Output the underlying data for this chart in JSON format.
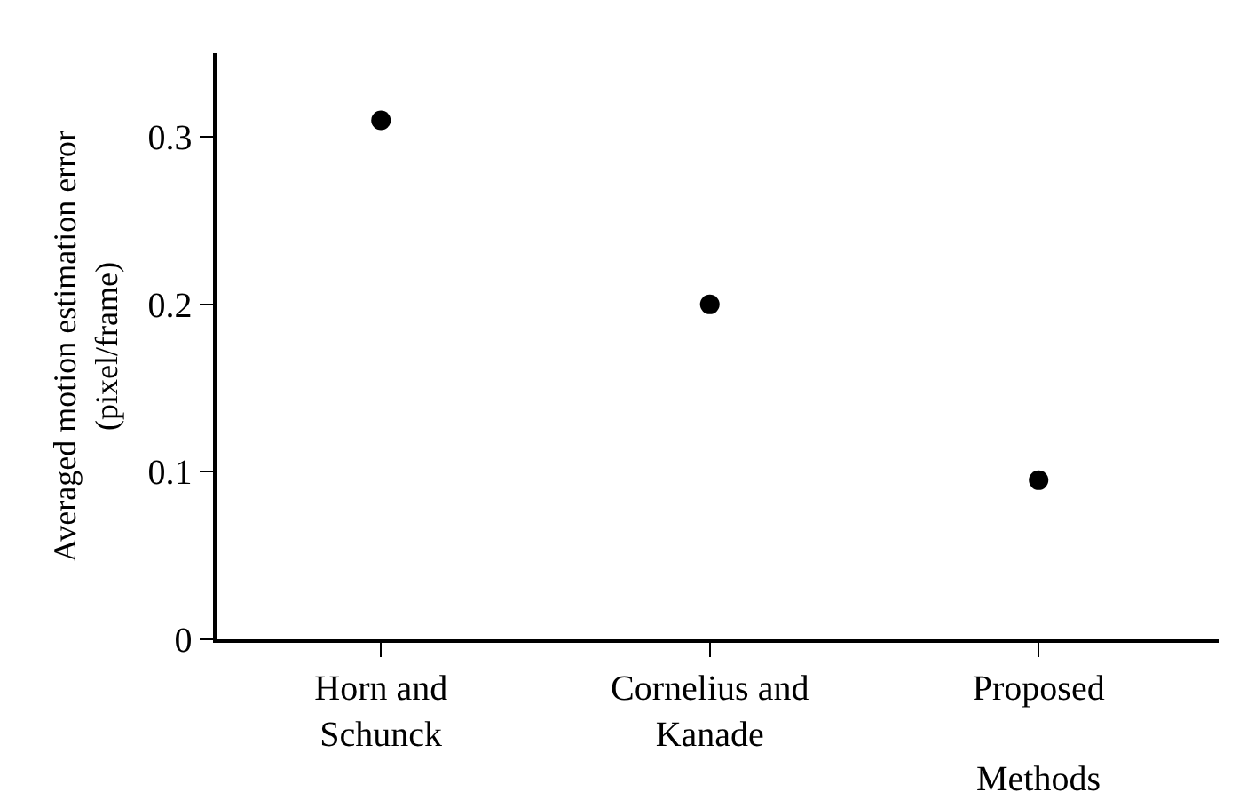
{
  "chart_data": {
    "type": "scatter",
    "xlabel": "Methods",
    "ylabel": "Averaged motion estimation error\n(pixel/frame)",
    "categories": [
      "Horn and\nSchunck",
      "Cornelius and\nKanade",
      "Proposed"
    ],
    "series": [
      {
        "color": "#000000",
        "values": [
          0.31,
          0.2,
          0.095
        ]
      }
    ],
    "ylim": [
      0,
      0.35
    ],
    "yticks": [
      0,
      0.1,
      0.2,
      0.3
    ],
    "grid": false,
    "marker": "circle"
  }
}
